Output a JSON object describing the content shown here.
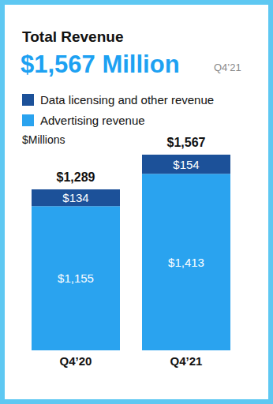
{
  "chart_data": {
    "type": "bar",
    "title": "Total Revenue",
    "subtitle": "$1,567 Million",
    "annotation": "Q4’21",
    "y_label": "$Millions",
    "categories": [
      "Q4’20",
      "Q4’21"
    ],
    "stacked": true,
    "data_labels": true,
    "tick_labels": "x",
    "series": [
      {
        "name": "Data licensing and other revenue",
        "color": "#1c5199",
        "values": [
          134,
          154
        ],
        "value_labels": [
          "$134",
          "$154"
        ]
      },
      {
        "name": "Advertising revenue",
        "color": "#2aa3ef",
        "values": [
          1155,
          1413
        ],
        "value_labels": [
          "$1,155",
          "$1,413"
        ]
      }
    ],
    "totals": [
      1289,
      1567
    ],
    "total_labels": [
      "$1,289",
      "$1,567"
    ]
  }
}
